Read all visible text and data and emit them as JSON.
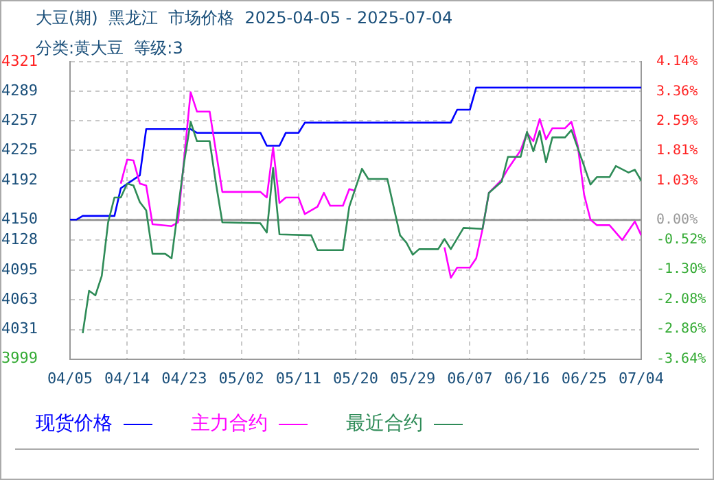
{
  "chart_data": {
    "type": "line",
    "title": "大豆(期)  黑龙江  市场价格  2025-04-05 - 2025-07-04",
    "subtitle": "分类:黄大豆  等级:3",
    "xlim": [
      "2025-04-05",
      "2025-07-04"
    ],
    "xticks": [
      {
        "value": "2025-04-05",
        "label": "04/05"
      },
      {
        "value": "2025-04-14",
        "label": "04/14"
      },
      {
        "value": "2025-04-23",
        "label": "04/23"
      },
      {
        "value": "2025-05-02",
        "label": "05/02"
      },
      {
        "value": "2025-05-11",
        "label": "05/11"
      },
      {
        "value": "2025-05-20",
        "label": "05/20"
      },
      {
        "value": "2025-05-29",
        "label": "05/29"
      },
      {
        "value": "2025-06-07",
        "label": "06/07"
      },
      {
        "value": "2025-06-16",
        "label": "06/16"
      },
      {
        "value": "2025-06-25",
        "label": "06/25"
      },
      {
        "value": "2025-07-04",
        "label": "07/04"
      }
    ],
    "ylim": [
      3999,
      4321
    ],
    "yticks": [
      3999,
      4031,
      4063,
      4095,
      4128,
      4150,
      4192,
      4225,
      4257,
      4289,
      4321
    ],
    "y2lim": [
      -3.64,
      4.14
    ],
    "y2ticks": [
      {
        "value": -3.64,
        "label": "-3.64%"
      },
      {
        "value": -2.86,
        "label": "-2.86%"
      },
      {
        "value": -2.08,
        "label": "-2.08%"
      },
      {
        "value": -1.3,
        "label": "-1.30%"
      },
      {
        "value": -0.52,
        "label": "-0.52%"
      },
      {
        "value": 0,
        "label": "0.00%"
      },
      {
        "value": 1.03,
        "label": "1.03%"
      },
      {
        "value": 1.81,
        "label": "1.81%"
      },
      {
        "value": 2.59,
        "label": "2.59%"
      },
      {
        "value": 3.36,
        "label": "3.36%"
      },
      {
        "value": 4.14,
        "label": "4.14%"
      }
    ],
    "ref_lines": [
      {
        "axis": "y2",
        "value": 0,
        "color": "#999999"
      }
    ],
    "grid": true,
    "legend": "bottom",
    "marker": "none",
    "line_style": "solid",
    "series": [
      {
        "name": "现货价格",
        "color": "#0000ff",
        "x": [
          "2025-04-05",
          "2025-04-06",
          "2025-04-07",
          "2025-04-12",
          "2025-04-13",
          "2025-04-16",
          "2025-04-17",
          "2025-04-24",
          "2025-04-25",
          "2025-05-05",
          "2025-05-06",
          "2025-05-08",
          "2025-05-09",
          "2025-05-11",
          "2025-05-12",
          "2025-06-04",
          "2025-06-05",
          "2025-06-07",
          "2025-06-08",
          "2025-07-04"
        ],
        "values": [
          4150,
          4150,
          4154,
          4154,
          4184,
          4198,
          4248,
          4248,
          4244,
          4244,
          4230,
          4230,
          4244,
          4244,
          4255,
          4255,
          4269,
          4269,
          4293,
          4293
        ]
      },
      {
        "name": "主力合约",
        "color": "#ff00ff",
        "x": [
          "2025-04-13",
          "2025-04-14",
          "2025-04-15",
          "2025-04-16",
          "2025-04-17",
          "2025-04-18",
          "2025-04-21",
          "2025-04-22",
          "2025-04-24",
          "2025-04-25",
          "2025-04-27",
          "2025-04-29",
          "2025-05-05",
          "2025-05-06",
          "2025-05-07",
          "2025-05-08",
          "2025-05-09",
          "2025-05-11",
          "2025-05-12",
          "2025-05-14",
          "2025-05-15",
          "2025-05-16",
          "2025-05-18",
          "2025-05-19",
          "2025-05-20",
          "2025-05-27",
          "2025-06-03",
          "2025-06-04",
          "2025-06-05",
          "2025-06-07",
          "2025-06-08",
          "2025-06-09",
          "2025-06-10",
          "2025-06-12",
          "2025-06-13",
          "2025-06-15",
          "2025-06-16",
          "2025-06-17",
          "2025-06-18",
          "2025-06-19",
          "2025-06-20",
          "2025-06-22",
          "2025-06-23",
          "2025-06-24",
          "2025-06-25",
          "2025-06-26",
          "2025-06-27",
          "2025-06-29",
          "2025-07-01",
          "2025-07-03",
          "2025-07-04"
        ],
        "values": [
          4189,
          4215,
          4214,
          4189,
          4187,
          4145,
          4143,
          4147,
          4288,
          4267,
          4267,
          4180,
          4180,
          4174,
          4228,
          4168,
          4174,
          4174,
          4156,
          4164,
          4179,
          4165,
          4165,
          4183,
          4181,
          null,
          4120,
          4087,
          4098,
          4098,
          4108,
          4140,
          4179,
          4193,
          4205,
          4225,
          4244,
          4235,
          4259,
          4237,
          4249,
          4249,
          4256,
          4230,
          4177,
          4150,
          4144,
          4144,
          4128,
          4148,
          4133
        ]
      },
      {
        "name": "最近合约",
        "color": "#2e8b57",
        "x": [
          "2025-04-07",
          "2025-04-08",
          "2025-04-09",
          "2025-04-10",
          "2025-04-11",
          "2025-04-12",
          "2025-04-13",
          "2025-04-14",
          "2025-04-15",
          "2025-04-16",
          "2025-04-17",
          "2025-04-18",
          "2025-04-20",
          "2025-04-21",
          "2025-04-23",
          "2025-04-24",
          "2025-04-25",
          "2025-04-27",
          "2025-04-28",
          "2025-04-29",
          "2025-05-05",
          "2025-05-06",
          "2025-05-07",
          "2025-05-08",
          "2025-05-13",
          "2025-05-14",
          "2025-05-18",
          "2025-05-19",
          "2025-05-21",
          "2025-05-22",
          "2025-05-25",
          "2025-05-27",
          "2025-05-28",
          "2025-05-29",
          "2025-05-30",
          "2025-06-02",
          "2025-06-03",
          "2025-06-04",
          "2025-06-06",
          "2025-06-09",
          "2025-06-10",
          "2025-06-12",
          "2025-06-13",
          "2025-06-15",
          "2025-06-16",
          "2025-06-17",
          "2025-06-18",
          "2025-06-19",
          "2025-06-20",
          "2025-06-22",
          "2025-06-23",
          "2025-06-25",
          "2025-06-26",
          "2025-06-27",
          "2025-06-29",
          "2025-06-30",
          "2025-07-02",
          "2025-07-03",
          "2025-07-04"
        ],
        "values": [
          4027,
          4073,
          4068,
          4089,
          4147,
          4174,
          4174,
          4189,
          4187,
          4169,
          4160,
          4113,
          4113,
          4108,
          4213,
          4256,
          4235,
          4235,
          4189,
          4147,
          4146,
          4136,
          4206,
          4134,
          4133,
          4117,
          4117,
          4164,
          4205,
          4194,
          4194,
          4133,
          4125,
          4112,
          4118,
          4118,
          4129,
          4118,
          4141,
          4140,
          4179,
          4191,
          4218,
          4218,
          4245,
          4224,
          4246,
          4212,
          4239,
          4239,
          4247,
          4208,
          4188,
          4196,
          4196,
          4208,
          4201,
          4204,
          4192
        ]
      }
    ]
  }
}
